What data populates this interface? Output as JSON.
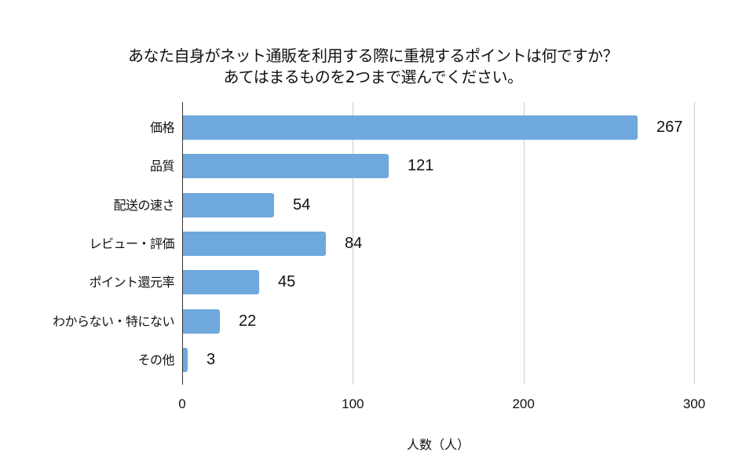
{
  "chart_data": {
    "type": "bar",
    "orientation": "horizontal",
    "title": "あなた自身がネット通販を利用する際に重視するポイントは何ですか？\nあてはまるものを2つまで選んでください。",
    "title_lines": [
      "あなた自身がネット通販を利用する際に重視するポイントは何ですか？",
      "あてはまるものを2つまで選んでください。"
    ],
    "categories": [
      "価格",
      "品質",
      "配送の速さ",
      "レビュー・評価",
      "ポイント還元率",
      "わからない・特にない",
      "その他"
    ],
    "values": [
      267,
      121,
      54,
      84,
      45,
      22,
      3
    ],
    "value_labels": [
      "267",
      "121",
      "54",
      "84",
      "45",
      "22",
      "3"
    ],
    "xlabel": "人数（人）",
    "ylabel": "",
    "xlim": [
      0,
      300
    ],
    "xticks": [
      0,
      100,
      200,
      300
    ],
    "xtick_labels": [
      "0",
      "100",
      "200",
      "300"
    ],
    "grid": {
      "vertical": true,
      "horizontal": false
    },
    "legend": null,
    "bar_color": "#6fa8dc"
  }
}
